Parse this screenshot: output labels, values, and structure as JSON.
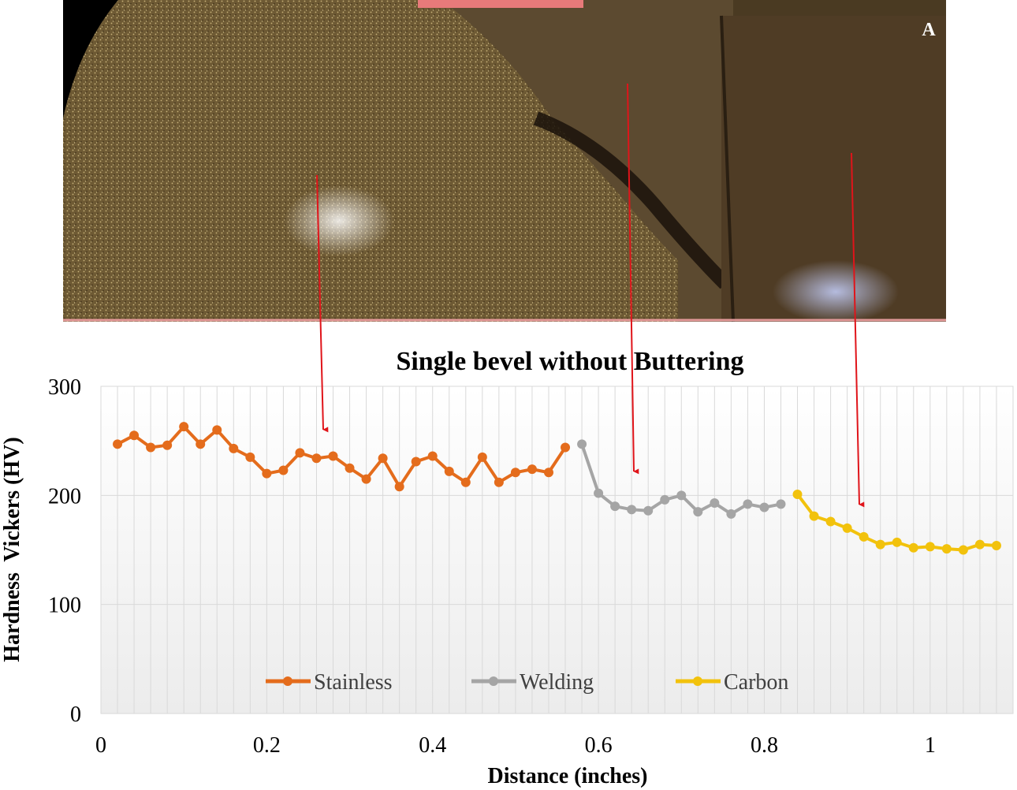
{
  "panel": {
    "label": "A",
    "description_regions": [
      "Stainless",
      "Welding",
      "Carbon"
    ]
  },
  "colors": {
    "stainless": "#E46C1C",
    "welding": "#A5A5A5",
    "carbon": "#F2C20C",
    "arrow": "#E0141A",
    "grid": "#D9D9D9"
  },
  "chart_data": {
    "type": "line",
    "title": "Single bevel without Buttering",
    "xlabel": "Distance (inches)",
    "ylabel": "Hardness  Vickers (HV)",
    "xlim": [
      0,
      1.1
    ],
    "ylim": [
      0,
      300
    ],
    "x_ticks": [
      0,
      0.2,
      0.4,
      0.6,
      0.8,
      1
    ],
    "x_tick_labels": [
      "0",
      "0.2",
      "0.4",
      "0.6",
      "0.8",
      "1"
    ],
    "y_ticks": [
      0,
      100,
      200,
      300
    ],
    "y_tick_labels": [
      "0",
      "100",
      "200",
      "300"
    ],
    "grid": true,
    "legend": "bottom",
    "series": [
      {
        "name": "Stainless",
        "color": "#E46C1C",
        "x": [
          0.02,
          0.04,
          0.06,
          0.08,
          0.1,
          0.12,
          0.14,
          0.16,
          0.18,
          0.2,
          0.22,
          0.24,
          0.26,
          0.28,
          0.3,
          0.32,
          0.34,
          0.36,
          0.38,
          0.4,
          0.42,
          0.44,
          0.46,
          0.48,
          0.5,
          0.52,
          0.54,
          0.56
        ],
        "y": [
          247,
          255,
          244,
          246,
          263,
          247,
          260,
          243,
          235,
          220,
          223,
          239,
          234,
          236,
          225,
          215,
          234,
          208,
          231,
          236,
          222,
          212,
          235,
          212,
          221,
          224,
          221,
          244
        ]
      },
      {
        "name": "Welding",
        "color": "#A5A5A5",
        "x": [
          0.58,
          0.6,
          0.62,
          0.64,
          0.66,
          0.68,
          0.7,
          0.72,
          0.74,
          0.76,
          0.78,
          0.8,
          0.82
        ],
        "y": [
          247,
          202,
          190,
          187,
          186,
          196,
          200,
          185,
          193,
          183,
          192,
          189,
          192
        ]
      },
      {
        "name": "Carbon",
        "color": "#F2C20C",
        "x": [
          0.84,
          0.86,
          0.88,
          0.9,
          0.92,
          0.94,
          0.96,
          0.98,
          1.0,
          1.02,
          1.04,
          1.06,
          1.08
        ],
        "y": [
          201,
          181,
          176,
          170,
          162,
          155,
          157,
          152,
          153,
          151,
          150,
          155,
          154
        ]
      }
    ]
  }
}
